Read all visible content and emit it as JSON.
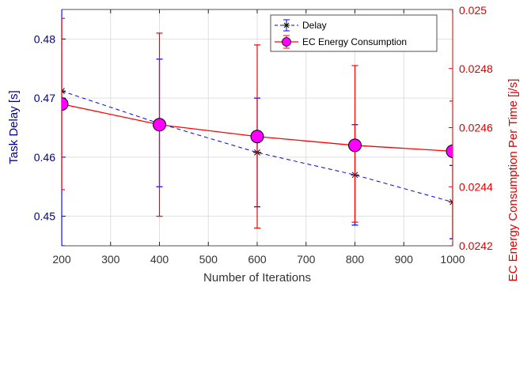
{
  "chart_data": {
    "type": "line",
    "title": "",
    "xlabel": "Number of Iterations",
    "ylabel_left": "Task Delay [s]",
    "ylabel_right": "EC Energy Consumption Per Time [j/s]",
    "xlim": [
      200,
      1000
    ],
    "ylim_left": [
      0.445,
      0.485
    ],
    "ylim_right": [
      0.0242,
      0.025
    ],
    "x_ticks": [
      200,
      300,
      400,
      500,
      600,
      700,
      800,
      900,
      1000
    ],
    "y_ticks_left": [
      0.45,
      0.46,
      0.47,
      0.48
    ],
    "y_ticks_right": [
      0.0242,
      0.0244,
      0.0246,
      0.0248,
      0.025
    ],
    "grid": true,
    "legend_position": "top-right",
    "x": [
      200,
      400,
      600,
      800,
      1000
    ],
    "series": [
      {
        "name": "Delay",
        "axis": "left",
        "color": "#0000ff",
        "marker": "asterisk",
        "line_style": "dashed",
        "values": [
          0.4712,
          0.4657,
          0.4608,
          0.457,
          0.4524
        ],
        "error_low": [
          0.445,
          0.455,
          0.4516,
          0.4485,
          0.4462
        ],
        "error_high": [
          0.487,
          0.4766,
          0.47,
          0.4655,
          0.4586
        ]
      },
      {
        "name": "EC Energy Consumption",
        "axis": "right",
        "color": "#ff0000",
        "marker_fill": "#ff00ff",
        "marker": "circle",
        "line_style": "solid",
        "values": [
          0.02468,
          0.02461,
          0.02457,
          0.02454,
          0.02452
        ],
        "error_low": [
          0.02439,
          0.0243,
          0.02426,
          0.02428,
          0.02435
        ],
        "error_high": [
          0.02497,
          0.02492,
          0.02488,
          0.02481,
          0.02469
        ]
      }
    ]
  }
}
